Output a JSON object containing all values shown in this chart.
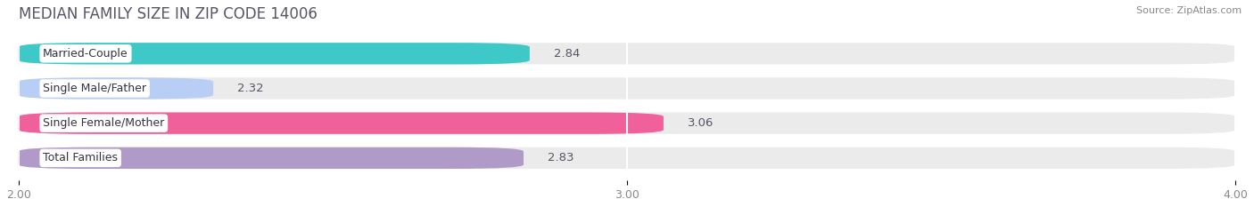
{
  "title": "MEDIAN FAMILY SIZE IN ZIP CODE 14006",
  "source": "Source: ZipAtlas.com",
  "categories": [
    "Married-Couple",
    "Single Male/Father",
    "Single Female/Mother",
    "Total Families"
  ],
  "values": [
    2.84,
    2.32,
    3.06,
    2.83
  ],
  "bar_colors": [
    "#3ec8c8",
    "#b8cef5",
    "#f0609a",
    "#b09ac8"
  ],
  "xlim": [
    2.0,
    4.0
  ],
  "xticks": [
    2.0,
    3.0,
    4.0
  ],
  "xtick_labels": [
    "2.00",
    "3.00",
    "4.00"
  ],
  "background_color": "#ffffff",
  "bar_bg_color": "#ebebeb",
  "title_fontsize": 12,
  "bar_height": 0.62,
  "bar_label_fontsize": 9.5,
  "category_label_fontsize": 9,
  "label_box_color": "#ffffff",
  "title_color": "#555566",
  "value_color": "#555566",
  "tick_color": "#888888",
  "source_color": "#888888"
}
